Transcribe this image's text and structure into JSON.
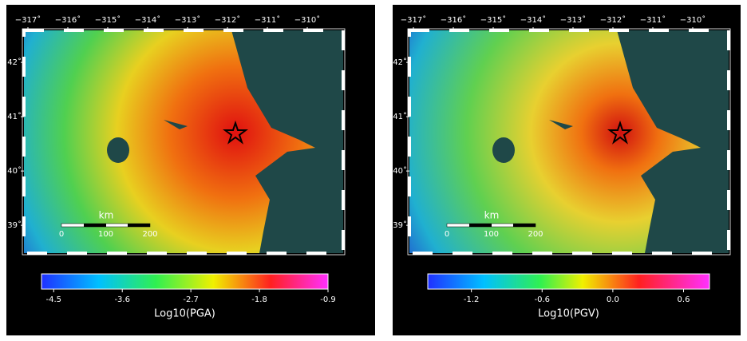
{
  "panels": [
    {
      "lon_ticks": [
        {
          "value": -317,
          "label": "−317˚"
        },
        {
          "value": -316,
          "label": "−316˚"
        },
        {
          "value": -315,
          "label": "−315˚"
        },
        {
          "value": -314,
          "label": "−314˚"
        },
        {
          "value": -313,
          "label": "−313˚"
        },
        {
          "value": -312,
          "label": "−312˚"
        },
        {
          "value": -311,
          "label": "−311˚"
        },
        {
          "value": -310,
          "label": "−310˚"
        }
      ],
      "lat_ticks": [
        {
          "value": 42,
          "label": "42˚"
        },
        {
          "value": 41,
          "label": "41˚"
        },
        {
          "value": 40,
          "label": "40˚"
        },
        {
          "value": 39,
          "label": "39˚"
        }
      ],
      "scale": {
        "unit": "km",
        "labels": [
          "0",
          "100",
          "200"
        ]
      },
      "colorbar": {
        "label": "Log10(PGA)",
        "lim": [
          -4.66,
          -0.9
        ],
        "ticks": [
          -4.5,
          -3.6,
          -2.7,
          -1.8,
          -0.9
        ]
      }
    },
    {
      "lon_ticks": [
        {
          "value": -317,
          "label": "−317˚"
        },
        {
          "value": -316,
          "label": "−316˚"
        },
        {
          "value": -315,
          "label": "−315˚"
        },
        {
          "value": -314,
          "label": "−314˚"
        },
        {
          "value": -313,
          "label": "−313˚"
        },
        {
          "value": -312,
          "label": "−312˚"
        },
        {
          "value": -311,
          "label": "−311˚"
        },
        {
          "value": -310,
          "label": "−310˚"
        }
      ],
      "lat_ticks": [
        {
          "value": 42,
          "label": "42˚"
        },
        {
          "value": 41,
          "label": "41˚"
        },
        {
          "value": 40,
          "label": "40˚"
        },
        {
          "value": 39,
          "label": "39˚"
        }
      ],
      "scale": {
        "unit": "km",
        "labels": [
          "0",
          "100",
          "200"
        ]
      },
      "colorbar": {
        "label": "Log10(PGV)",
        "lim": [
          -1.57,
          0.82
        ],
        "ticks": [
          -1.2,
          -0.6,
          {
            "value": 0,
            "label": "0.0"
          },
          0.6
        ]
      }
    }
  ]
}
